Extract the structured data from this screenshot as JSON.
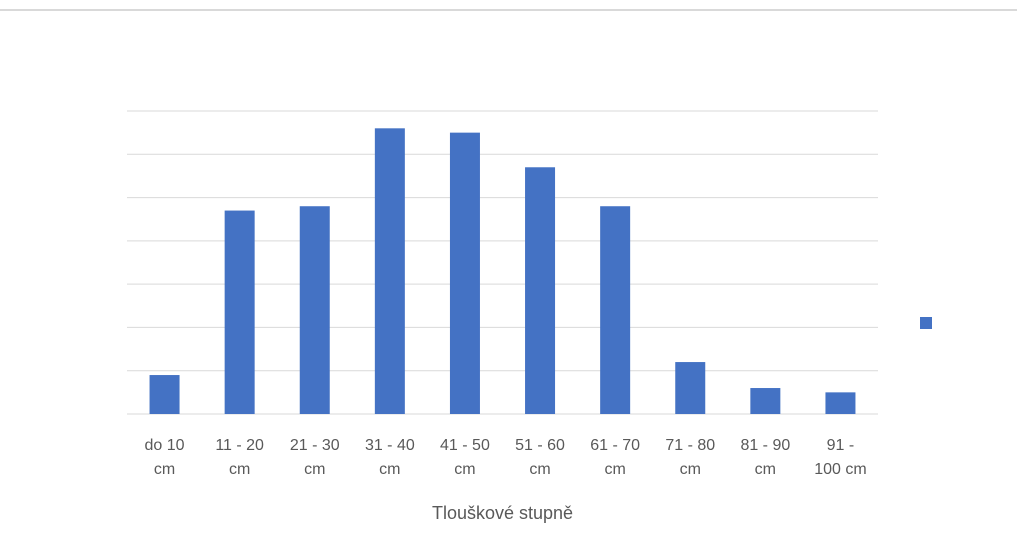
{
  "chart_data": {
    "type": "bar",
    "x_label": "Tlouškové stupně",
    "categories": [
      "do 10 cm",
      "11 - 20 cm",
      "21 - 30 cm",
      "31 - 40 cm",
      "41 - 50 cm",
      "51 - 60 cm",
      "61 - 70 cm",
      "71 - 80 cm",
      "81 - 90 cm",
      "91 - 100 cm"
    ],
    "values": [
      0.9,
      4.7,
      4.8,
      6.6,
      6.5,
      5.7,
      4.8,
      1.2,
      0.6,
      0.5
    ],
    "color": "#4472c4",
    "ylim": [
      0,
      7
    ],
    "yticks": [
      0,
      1,
      2,
      3,
      4,
      5,
      6,
      7
    ],
    "grid": true
  }
}
